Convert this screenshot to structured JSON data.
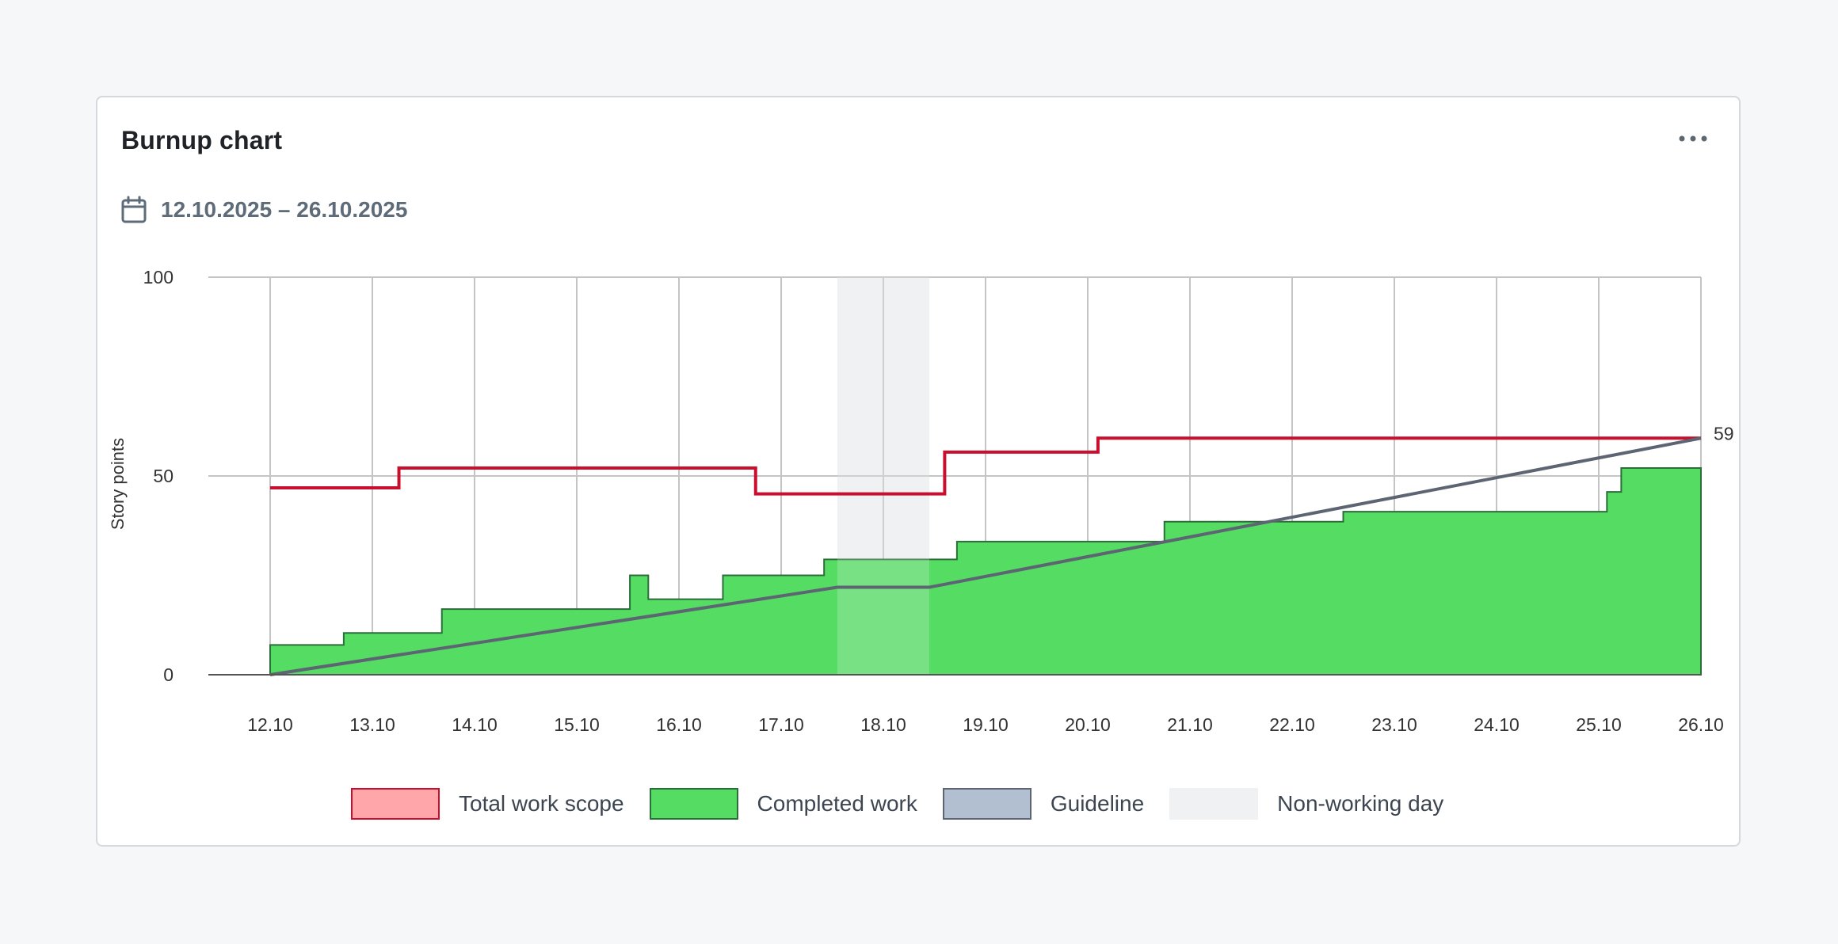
{
  "card": {
    "title": "Burnup chart",
    "menu_icon": "more-horizontal-icon",
    "date_icon": "calendar-icon",
    "date_range": "12.10.2025 – 26.10.2025"
  },
  "legend": [
    {
      "label": "Total work scope",
      "fill": "#fea6aa",
      "stroke": "#c8102e"
    },
    {
      "label": "Completed work",
      "fill": "#54dc63",
      "stroke": "#2c6e3a"
    },
    {
      "label": "Guideline",
      "fill": "#b2bfd0",
      "stroke": "#5d6472"
    },
    {
      "label": "Non-working day",
      "fill": "#f0f1f3",
      "stroke": "#f0f1f3"
    }
  ],
  "chart_data": {
    "type": "area",
    "ylabel": "Story points",
    "ylim": [
      0,
      100
    ],
    "yticks": [
      "0",
      "50",
      "100"
    ],
    "xticks": [
      "12.10",
      "13.10",
      "14.10",
      "15.10",
      "16.10",
      "17.10",
      "18.10",
      "19.10",
      "20.10",
      "21.10",
      "22.10",
      "23.10",
      "24.10",
      "25.10",
      "26.10"
    ],
    "xlim": [
      0,
      14
    ],
    "grid": true,
    "non_working_days": [
      [
        5.55,
        6.45
      ]
    ],
    "end_label": "59",
    "series": [
      {
        "name": "Total work scope",
        "kind": "step-line",
        "color": "#c8102e",
        "points": [
          [
            0,
            47
          ],
          [
            1.26,
            47
          ],
          [
            1.26,
            52
          ],
          [
            4.75,
            52
          ],
          [
            4.75,
            45.5
          ],
          [
            6.6,
            45.5
          ],
          [
            6.6,
            56
          ],
          [
            8.1,
            56
          ],
          [
            8.1,
            59.5
          ],
          [
            14,
            59.5
          ]
        ]
      },
      {
        "name": "Completed work",
        "kind": "step-area",
        "color": "#54dc63",
        "stroke": "#2c6e3a",
        "points": [
          [
            0,
            7.5
          ],
          [
            0.72,
            7.5
          ],
          [
            0.72,
            10.5
          ],
          [
            1.68,
            10.5
          ],
          [
            1.68,
            16.5
          ],
          [
            3.52,
            16.5
          ],
          [
            3.52,
            25
          ],
          [
            3.7,
            25
          ],
          [
            3.7,
            19
          ],
          [
            4.43,
            19
          ],
          [
            4.43,
            25
          ],
          [
            5.42,
            25
          ],
          [
            5.42,
            29
          ],
          [
            6.72,
            29
          ],
          [
            6.72,
            33.5
          ],
          [
            8.75,
            33.5
          ],
          [
            8.75,
            38.5
          ],
          [
            10.5,
            38.5
          ],
          [
            10.5,
            41
          ],
          [
            13.08,
            41
          ],
          [
            13.08,
            46
          ],
          [
            13.22,
            46
          ],
          [
            13.22,
            52
          ],
          [
            14,
            52
          ]
        ]
      },
      {
        "name": "Guideline",
        "kind": "line",
        "color": "#5d6472",
        "points": [
          [
            0,
            0
          ],
          [
            5.55,
            22
          ],
          [
            6.45,
            22
          ],
          [
            14,
            59.5
          ]
        ]
      }
    ]
  }
}
